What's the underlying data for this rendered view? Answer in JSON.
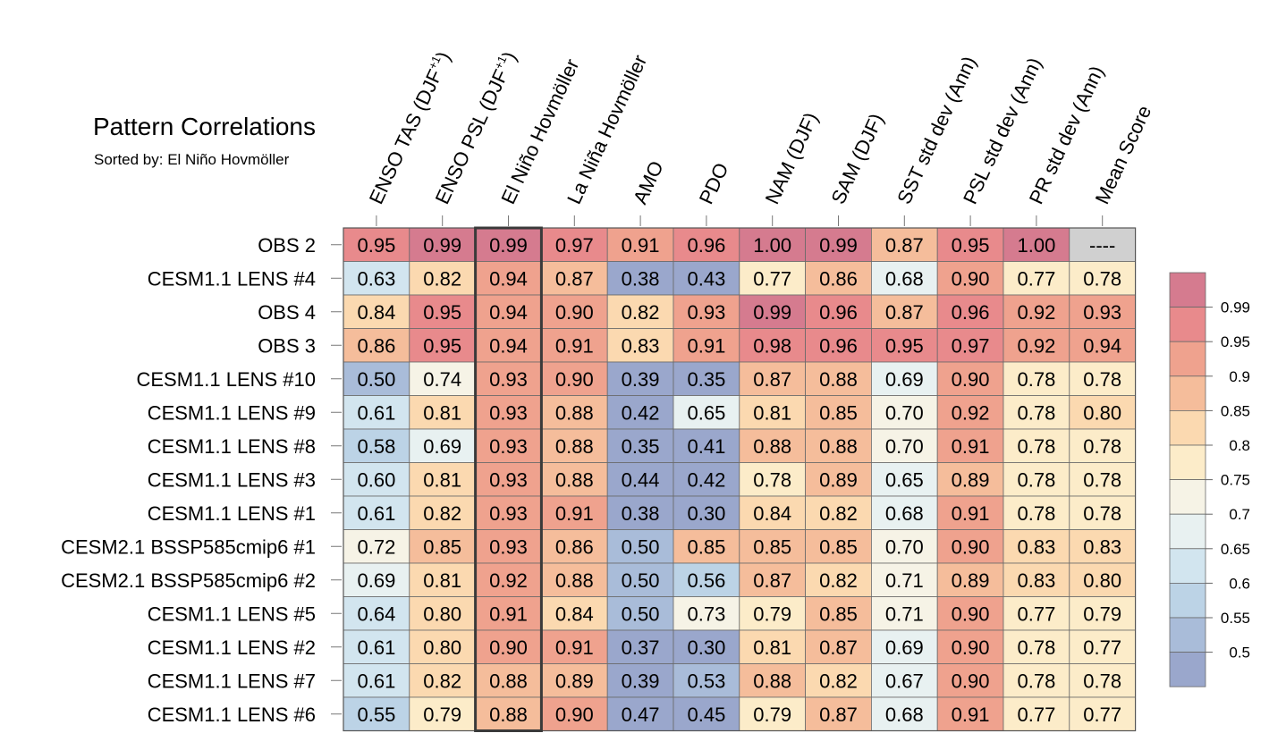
{
  "title": "Pattern Correlations",
  "subtitle": "Sorted by: El Niño Hovmöller",
  "chart_data": {
    "type": "heatmap",
    "title": "Pattern Correlations",
    "subtitle": "Sorted by: El Niño Hovmöller",
    "highlighted_column": "El Niño Hovmöller",
    "columns": [
      {
        "main": "ENSO TAS (DJF",
        "sup": "+1",
        "close": ")"
      },
      {
        "main": "ENSO PSL (DJF",
        "sup": "+1",
        "close": ")"
      },
      {
        "main": "El Niño Hovmöller",
        "sup": "",
        "close": ""
      },
      {
        "main": "La Niña Hovmöller",
        "sup": "",
        "close": ""
      },
      {
        "main": "AMO",
        "sup": "",
        "close": ""
      },
      {
        "main": "PDO",
        "sup": "",
        "close": ""
      },
      {
        "main": "NAM (DJF)",
        "sup": "",
        "close": ""
      },
      {
        "main": "SAM (DJF)",
        "sup": "",
        "close": ""
      },
      {
        "main": "SST std dev (Ann)",
        "sup": "",
        "close": ""
      },
      {
        "main": "PSL std dev (Ann)",
        "sup": "",
        "close": ""
      },
      {
        "main": "PR std dev (Ann)",
        "sup": "",
        "close": ""
      },
      {
        "main": "Mean Score",
        "sup": "",
        "close": ""
      }
    ],
    "rows": [
      {
        "label": "OBS 2",
        "values": [
          "0.95",
          "0.99",
          "0.99",
          "0.97",
          "0.91",
          "0.96",
          "1.00",
          "0.99",
          "0.87",
          "0.95",
          "1.00",
          "----"
        ]
      },
      {
        "label": "CESM1.1 LENS #4",
        "values": [
          "0.63",
          "0.82",
          "0.94",
          "0.87",
          "0.38",
          "0.43",
          "0.77",
          "0.86",
          "0.68",
          "0.90",
          "0.77",
          "0.78"
        ]
      },
      {
        "label": "OBS 4",
        "values": [
          "0.84",
          "0.95",
          "0.94",
          "0.90",
          "0.82",
          "0.93",
          "0.99",
          "0.96",
          "0.87",
          "0.96",
          "0.92",
          "0.93"
        ]
      },
      {
        "label": "OBS 3",
        "values": [
          "0.86",
          "0.95",
          "0.94",
          "0.91",
          "0.83",
          "0.91",
          "0.98",
          "0.96",
          "0.95",
          "0.97",
          "0.92",
          "0.94"
        ]
      },
      {
        "label": "CESM1.1 LENS #10",
        "values": [
          "0.50",
          "0.74",
          "0.93",
          "0.90",
          "0.39",
          "0.35",
          "0.87",
          "0.88",
          "0.69",
          "0.90",
          "0.78",
          "0.78"
        ]
      },
      {
        "label": "CESM1.1 LENS #9",
        "values": [
          "0.61",
          "0.81",
          "0.93",
          "0.88",
          "0.42",
          "0.65",
          "0.81",
          "0.85",
          "0.70",
          "0.92",
          "0.78",
          "0.80"
        ]
      },
      {
        "label": "CESM1.1 LENS #8",
        "values": [
          "0.58",
          "0.69",
          "0.93",
          "0.88",
          "0.35",
          "0.41",
          "0.88",
          "0.88",
          "0.70",
          "0.91",
          "0.78",
          "0.78"
        ]
      },
      {
        "label": "CESM1.1 LENS #3",
        "values": [
          "0.60",
          "0.81",
          "0.93",
          "0.88",
          "0.44",
          "0.42",
          "0.78",
          "0.89",
          "0.65",
          "0.89",
          "0.78",
          "0.78"
        ]
      },
      {
        "label": "CESM1.1 LENS #1",
        "values": [
          "0.61",
          "0.82",
          "0.93",
          "0.91",
          "0.38",
          "0.30",
          "0.84",
          "0.82",
          "0.68",
          "0.91",
          "0.78",
          "0.78"
        ]
      },
      {
        "label": "CESM2.1 BSSP585cmip6 #1",
        "values": [
          "0.72",
          "0.85",
          "0.93",
          "0.86",
          "0.50",
          "0.85",
          "0.85",
          "0.85",
          "0.70",
          "0.90",
          "0.83",
          "0.83"
        ]
      },
      {
        "label": "CESM2.1 BSSP585cmip6 #2",
        "values": [
          "0.69",
          "0.81",
          "0.92",
          "0.88",
          "0.50",
          "0.56",
          "0.87",
          "0.82",
          "0.71",
          "0.89",
          "0.83",
          "0.80"
        ]
      },
      {
        "label": "CESM1.1 LENS #5",
        "values": [
          "0.64",
          "0.80",
          "0.91",
          "0.84",
          "0.50",
          "0.73",
          "0.79",
          "0.85",
          "0.71",
          "0.90",
          "0.77",
          "0.79"
        ]
      },
      {
        "label": "CESM1.1 LENS #2",
        "values": [
          "0.61",
          "0.80",
          "0.90",
          "0.91",
          "0.37",
          "0.30",
          "0.81",
          "0.87",
          "0.69",
          "0.90",
          "0.78",
          "0.77"
        ]
      },
      {
        "label": "CESM1.1 LENS #7",
        "values": [
          "0.61",
          "0.82",
          "0.88",
          "0.89",
          "0.39",
          "0.53",
          "0.88",
          "0.82",
          "0.67",
          "0.90",
          "0.78",
          "0.78"
        ]
      },
      {
        "label": "CESM1.1 LENS #6",
        "values": [
          "0.55",
          "0.79",
          "0.88",
          "0.90",
          "0.47",
          "0.45",
          "0.79",
          "0.87",
          "0.68",
          "0.91",
          "0.77",
          "0.77"
        ]
      }
    ],
    "colorbar": {
      "labels": [
        "0.99",
        "0.95",
        "0.9",
        "0.85",
        "0.8",
        "0.75",
        "0.7",
        "0.65",
        "0.6",
        "0.55",
        "0.5"
      ],
      "thresholds": [
        0.5,
        0.55,
        0.6,
        0.65,
        0.7,
        0.75,
        0.8,
        0.85,
        0.9,
        0.95,
        0.99
      ],
      "colors": [
        "#9aa7cc",
        "#a9bcd9",
        "#bcd3e6",
        "#d2e5ef",
        "#e8f1f1",
        "#f6f3e6",
        "#fcecc9",
        "#fbd9b0",
        "#f5bd9b",
        "#efa28e",
        "#e88a8c",
        "#d57b8f"
      ],
      "missing_color": "#d0d0d0"
    }
  }
}
